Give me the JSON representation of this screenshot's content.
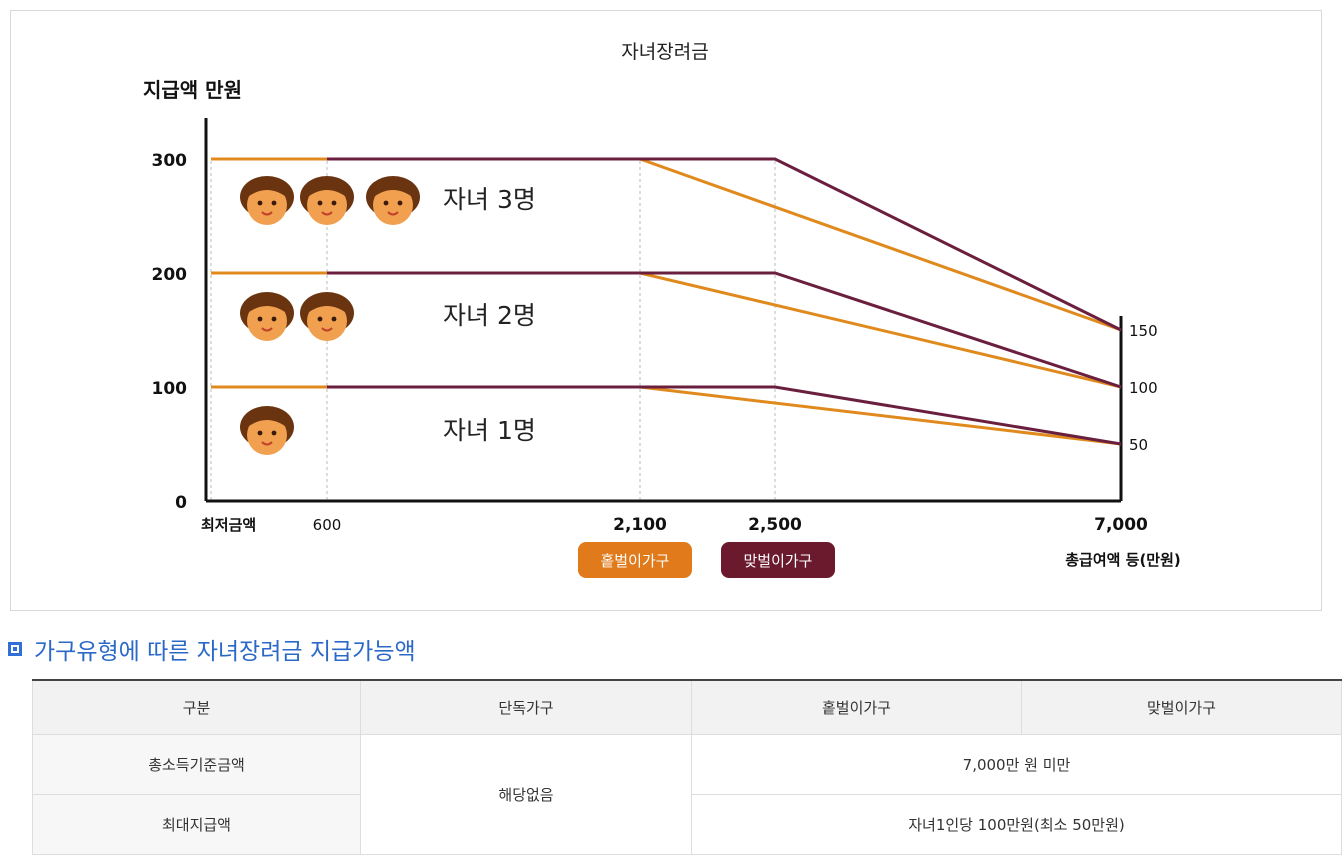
{
  "chart_data": {
    "type": "line",
    "title": "자녀장려금",
    "ylabel": "지급액 만원",
    "xlabel": "총급여액 등(만원)",
    "x_ticks": [
      "최저금액",
      "600",
      "2,100",
      "2,500",
      "7,000"
    ],
    "y_ticks": [
      "0",
      "100",
      "200",
      "300"
    ],
    "right_ticks": [
      "150",
      "100",
      "50"
    ],
    "ylim": [
      0,
      300
    ],
    "series": [
      {
        "name": "홑벌이가구",
        "color": "#e08a1e",
        "group": "자녀 3명",
        "points": [
          [
            0,
            300
          ],
          [
            600,
            300
          ],
          [
            2100,
            300
          ],
          [
            7000,
            150
          ]
        ]
      },
      {
        "name": "맞벌이가구",
        "color": "#6b1f3f",
        "group": "자녀 3명",
        "points": [
          [
            600,
            300
          ],
          [
            2500,
            300
          ],
          [
            7000,
            150
          ]
        ]
      },
      {
        "name": "홑벌이가구",
        "color": "#e08a1e",
        "group": "자녀 2명",
        "points": [
          [
            0,
            200
          ],
          [
            600,
            200
          ],
          [
            2100,
            200
          ],
          [
            7000,
            100
          ]
        ]
      },
      {
        "name": "맞벌이가구",
        "color": "#6b1f3f",
        "group": "자녀 2명",
        "points": [
          [
            600,
            200
          ],
          [
            2500,
            200
          ],
          [
            7000,
            100
          ]
        ]
      },
      {
        "name": "홑벌이가구",
        "color": "#e08a1e",
        "group": "자녀 1명",
        "points": [
          [
            0,
            100
          ],
          [
            600,
            100
          ],
          [
            2100,
            100
          ],
          [
            7000,
            50
          ]
        ]
      },
      {
        "name": "맞벌이가구",
        "color": "#6b1f3f",
        "group": "자녀 1명",
        "points": [
          [
            600,
            100
          ],
          [
            2500,
            100
          ],
          [
            7000,
            50
          ]
        ]
      }
    ],
    "annotations": [
      "자녀 3명",
      "자녀 2명",
      "자녀 1명"
    ],
    "legend": [
      {
        "label": "홑벌이가구",
        "color": "#e07a1a"
      },
      {
        "label": "맞벌이가구",
        "color": "#6b1a2e"
      }
    ],
    "legend_position": "bottom-center"
  },
  "section": {
    "title": "가구유형에 따른 자녀장려금 지급가능액"
  },
  "table": {
    "headers": [
      "구분",
      "단독가구",
      "홑벌이가구",
      "맞벌이가구"
    ],
    "row1_label": "총소득기준금액",
    "row2_label": "최대지급액",
    "single_value": "해당없음",
    "row1_value": "7,000만 원 미만",
    "row2_value": "자녀1인당 100만원(최소 50만원)"
  }
}
